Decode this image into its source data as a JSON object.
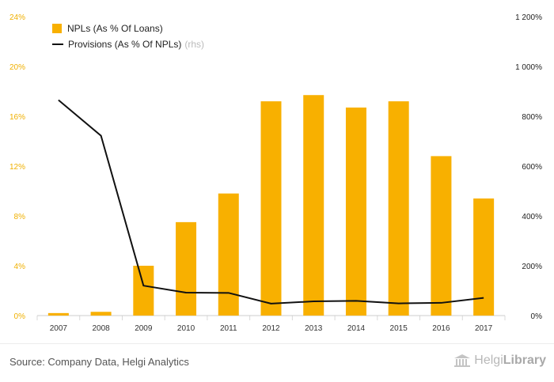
{
  "chart_data": {
    "type": "bar",
    "categories": [
      "2007",
      "2008",
      "2009",
      "2010",
      "2011",
      "2012",
      "2013",
      "2014",
      "2015",
      "2016",
      "2017"
    ],
    "series": [
      {
        "name": "NPLs (As % Of Loans)",
        "axis": "left",
        "render": "bar",
        "values": [
          0.2,
          0.3,
          4.0,
          7.5,
          9.8,
          17.2,
          17.7,
          16.7,
          17.2,
          12.8,
          9.4
        ]
      },
      {
        "name": "Provisions (As % Of NPLs)",
        "axis": "right",
        "render": "line",
        "values": [
          865,
          722,
          120,
          92,
          91,
          48,
          57,
          59,
          49,
          51,
          71
        ]
      }
    ],
    "ylim_left": [
      0,
      24
    ],
    "ylim_right": [
      0,
      1200
    ],
    "yticks_left": [
      "0%",
      "4%",
      "8%",
      "12%",
      "16%",
      "20%",
      "24%"
    ],
    "yticks_right": [
      "0%",
      "200%",
      "400%",
      "600%",
      "800%",
      "1 000%",
      "1 200%"
    ],
    "legend_note": "(rhs)",
    "legend_position": "top-left",
    "grid": "vertical category separators",
    "colors": {
      "bar": "#f8b000",
      "line": "#111111",
      "left_ticks": "#f0b000"
    }
  },
  "footer": {
    "source": "Source: Company Data, Helgi Analytics",
    "logo_part1": "Helgi",
    "logo_part2": "Library"
  }
}
